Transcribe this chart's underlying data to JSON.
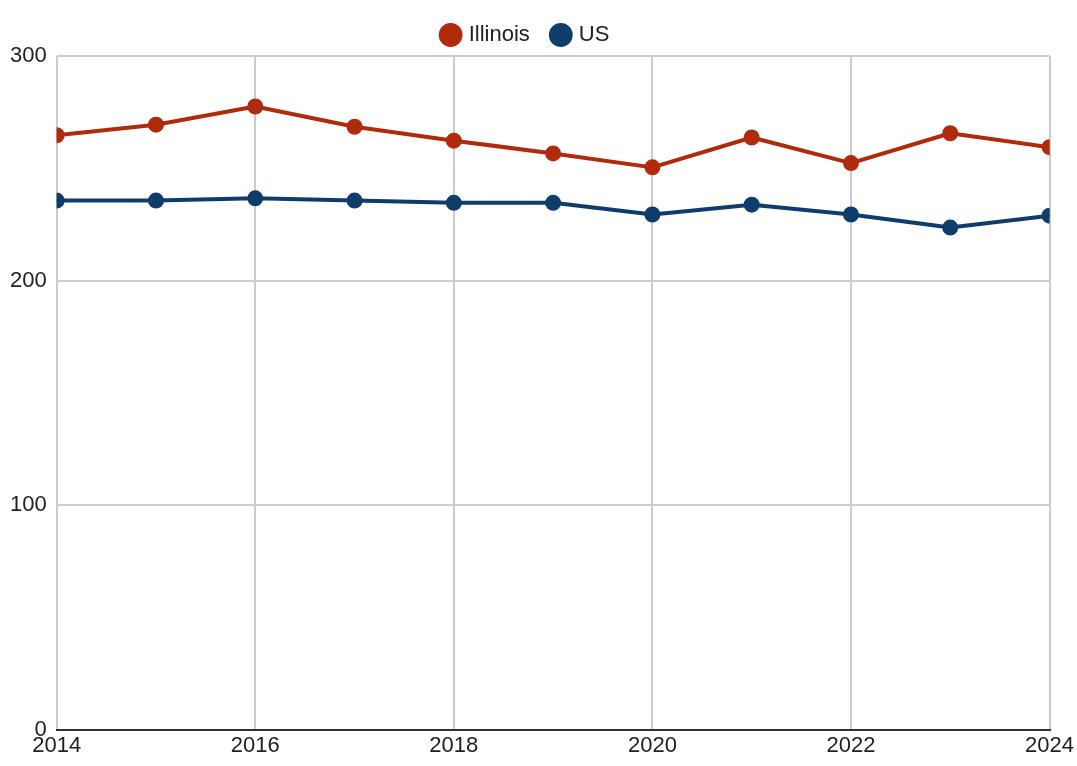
{
  "chart_data": {
    "type": "line",
    "x": [
      2014,
      2015,
      2016,
      2017,
      2018,
      2019,
      2020,
      2021,
      2022,
      2023,
      2024
    ],
    "series": [
      {
        "name": "Illinois",
        "color": "#b02a0c",
        "values": [
          264.7,
          269.4,
          277.5,
          268.5,
          262.3,
          256.6,
          250.4,
          263.7,
          252.3,
          265.6,
          259.4
        ]
      },
      {
        "name": "US",
        "color": "#0f3d6b",
        "values": [
          235.6,
          235.6,
          236.6,
          235.6,
          234.6,
          234.6,
          229.4,
          233.8,
          229.4,
          223.6,
          228.9
        ]
      }
    ],
    "xlim": [
      2014,
      2024
    ],
    "xticks": [
      2014,
      2016,
      2018,
      2020,
      2022,
      2024
    ],
    "ylim": [
      0,
      300
    ],
    "yticks": [
      0,
      100,
      200,
      300
    ],
    "grid": true,
    "legend": "top",
    "marker": "circle",
    "line_style": "solid"
  }
}
